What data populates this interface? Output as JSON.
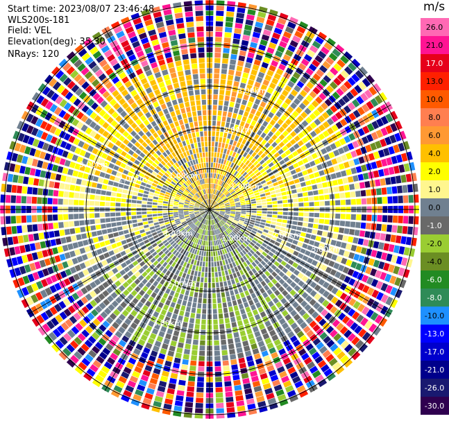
{
  "header": {
    "start_time": "Start time: 2023/08/07 23:46:48",
    "instrument": "WLS200s-181",
    "field": "Field: VEL",
    "elevation": "Elevation(deg): 35.30",
    "nrays": "NRays: 120"
  },
  "chart_data": {
    "type": "heatmap",
    "subtype": "ppi-radar",
    "field": "VEL",
    "units": "m/s",
    "nrays": 120,
    "range_ring_labels": [
      "1.00km",
      "2.00km",
      "3.00km"
    ],
    "spoke_angles_deg": [
      0,
      30,
      60,
      90,
      120,
      150,
      180,
      210,
      240,
      270,
      300,
      330
    ],
    "colorbar": {
      "unit": "m/s",
      "ticks": [
        "26.0",
        "21.0",
        "17.0",
        "13.0",
        "10.0",
        "8.0",
        "6.0",
        "4.0",
        "2.0",
        "1.0",
        "0.0",
        "-1.0",
        "-2.0",
        "-4.0",
        "-6.0",
        "-8.0",
        "-10.0",
        "-13.0",
        "-17.0",
        "-21.0",
        "-26.0",
        "-30.0"
      ],
      "colors": [
        "#ff69b4",
        "#ff1493",
        "#e6001a",
        "#ff2000",
        "#ff5a00",
        "#ff7f50",
        "#ff9933",
        "#ffc000",
        "#ffff00",
        "#fff68f",
        "#708090",
        "#696969",
        "#9acd32",
        "#6b8e23",
        "#228b22",
        "#2e8b57",
        "#1e90ff",
        "#0000ff",
        "#0000cd",
        "#00008b",
        "#191970",
        "#2f004f"
      ]
    }
  }
}
